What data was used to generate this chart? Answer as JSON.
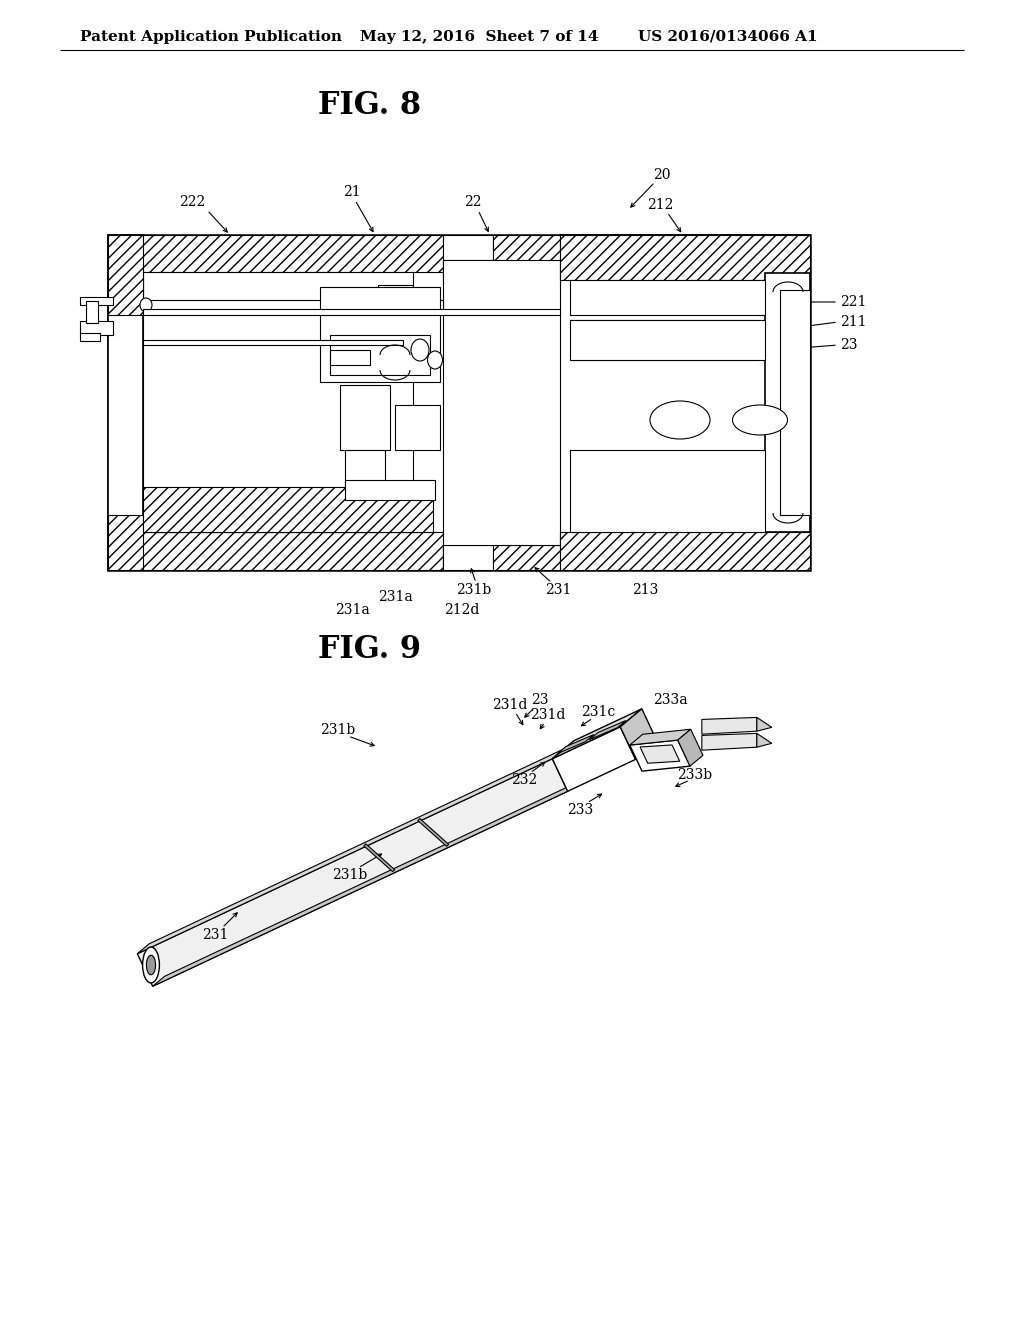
{
  "background_color": "#ffffff",
  "header_text": "Patent Application Publication",
  "header_date": "May 12, 2016  Sheet 7 of 14",
  "header_patent": "US 2016/0134066 A1",
  "fig8_title": "FIG. 8",
  "fig9_title": "FIG. 9",
  "font_size_header": 11,
  "font_size_fig": 22,
  "font_size_label": 10
}
